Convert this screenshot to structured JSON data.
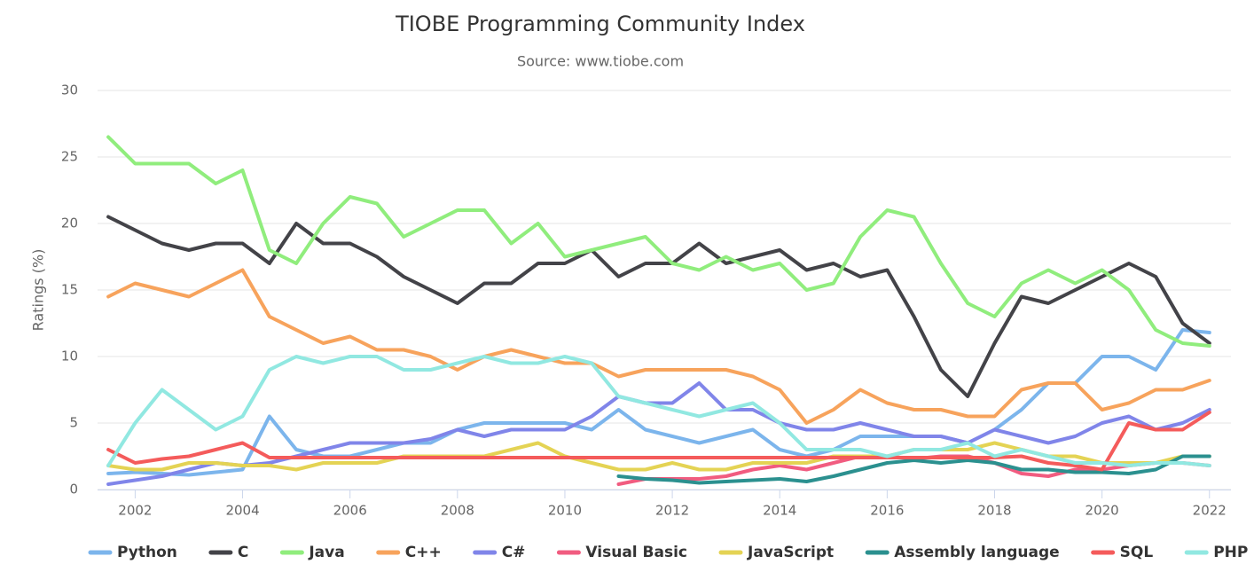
{
  "chart_data": {
    "type": "line",
    "title": "TIOBE Programming Community Index",
    "subtitle": "Source: www.tiobe.com",
    "y_label": "Ratings (%)",
    "x": [
      2001.5,
      2002,
      2002.5,
      2003,
      2003.5,
      2004,
      2004.5,
      2005,
      2005.5,
      2006,
      2006.5,
      2007,
      2007.5,
      2008,
      2008.5,
      2009,
      2009.5,
      2010,
      2010.5,
      2011,
      2011.5,
      2012,
      2012.5,
      2013,
      2013.5,
      2014,
      2014.5,
      2015,
      2015.5,
      2016,
      2016.5,
      2017,
      2017.5,
      2018,
      2018.5,
      2019,
      2019.5,
      2020,
      2020.5,
      2021,
      2021.5,
      2022
    ],
    "xlim": [
      2001.3,
      2022.4
    ],
    "xticks": [
      2002,
      2004,
      2006,
      2008,
      2010,
      2012,
      2014,
      2016,
      2018,
      2020,
      2022
    ],
    "ylim": [
      0,
      30
    ],
    "yticks": [
      0,
      5,
      10,
      15,
      20,
      25,
      30
    ],
    "grid": true,
    "legend": "bottom",
    "series": [
      {
        "name": "Python",
        "color": "#7cb5ec",
        "values": [
          1.2,
          1.3,
          1.2,
          1.1,
          1.3,
          1.5,
          5.5,
          3,
          2.5,
          2.5,
          3,
          3.5,
          3.5,
          4.5,
          5,
          5,
          5,
          5,
          4.5,
          6,
          4.5,
          4,
          3.5,
          4,
          4.5,
          3,
          2.5,
          3,
          4,
          4,
          4,
          4,
          3.5,
          4.5,
          6,
          8,
          8,
          10,
          10,
          9,
          12,
          11.8
        ]
      },
      {
        "name": "C",
        "color": "#434348",
        "values": [
          20.5,
          19.5,
          18.5,
          18,
          18.5,
          18.5,
          17,
          20,
          18.5,
          18.5,
          17.5,
          16,
          15,
          14,
          15.5,
          15.5,
          17,
          17,
          18,
          16,
          17,
          17,
          18.5,
          17,
          17.5,
          18,
          16.5,
          17,
          16,
          16.5,
          13,
          9,
          7,
          11,
          14.5,
          14,
          15,
          16,
          17,
          16,
          12.5,
          11
        ]
      },
      {
        "name": "Java",
        "color": "#90ed7d",
        "values": [
          26.5,
          24.5,
          24.5,
          24.5,
          23,
          24,
          18,
          17,
          20,
          22,
          21.5,
          19,
          20,
          21,
          21,
          18.5,
          20,
          17.5,
          18,
          18.5,
          19,
          17,
          16.5,
          17.5,
          16.5,
          17,
          15,
          15.5,
          19,
          21,
          20.5,
          17,
          14,
          13,
          15.5,
          16.5,
          15.5,
          16.5,
          15,
          12,
          11,
          10.8
        ]
      },
      {
        "name": "C++",
        "color": "#f7a35c",
        "values": [
          14.5,
          15.5,
          15,
          14.5,
          15.5,
          16.5,
          13,
          12,
          11,
          11.5,
          10.5,
          10.5,
          10,
          9,
          10,
          10.5,
          10,
          9.5,
          9.5,
          8.5,
          9,
          9,
          9,
          9,
          8.5,
          7.5,
          5,
          6,
          7.5,
          6.5,
          6,
          6,
          5.5,
          5.5,
          7.5,
          8,
          8,
          6,
          6.5,
          7.5,
          7.5,
          8.2
        ]
      },
      {
        "name": "C#",
        "color": "#8085e9",
        "values": [
          0.4,
          0.7,
          1,
          1.5,
          2,
          1.8,
          2,
          2.5,
          3,
          3.5,
          3.5,
          3.5,
          3.8,
          4.5,
          4,
          4.5,
          4.5,
          4.5,
          5.5,
          7,
          6.5,
          6.5,
          8,
          6,
          6,
          5,
          4.5,
          4.5,
          5,
          4.5,
          4,
          4,
          3.5,
          4.5,
          4,
          3.5,
          4,
          5,
          5.5,
          4.5,
          5,
          6
        ]
      },
      {
        "name": "Visual Basic",
        "color": "#f15c80",
        "values": [
          null,
          null,
          null,
          null,
          null,
          null,
          null,
          null,
          null,
          null,
          null,
          null,
          null,
          null,
          null,
          null,
          null,
          null,
          null,
          0.4,
          0.8,
          0.8,
          0.8,
          1,
          1.5,
          1.8,
          1.5,
          2,
          2.5,
          2.5,
          2.3,
          2.5,
          2.5,
          2,
          1.2,
          1,
          1.5,
          1.5,
          1.8,
          2,
          2,
          1.8
        ]
      },
      {
        "name": "JavaScript",
        "color": "#e4d354",
        "values": [
          1.8,
          1.5,
          1.5,
          2,
          2,
          1.8,
          1.8,
          1.5,
          2,
          2,
          2,
          2.5,
          2.5,
          2.5,
          2.5,
          3,
          3.5,
          2.5,
          2,
          1.5,
          1.5,
          2,
          1.5,
          1.5,
          2,
          2,
          2,
          2.5,
          2.5,
          2.5,
          3,
          3,
          3,
          3.5,
          3,
          2.5,
          2.5,
          2,
          2,
          2,
          2.5,
          2.5
        ]
      },
      {
        "name": "Assembly language",
        "color": "#2b908f",
        "values": [
          null,
          null,
          null,
          null,
          null,
          null,
          null,
          null,
          null,
          null,
          null,
          null,
          null,
          null,
          null,
          null,
          null,
          null,
          null,
          1,
          0.8,
          0.7,
          0.5,
          0.6,
          0.7,
          0.8,
          0.6,
          1,
          1.5,
          2,
          2.2,
          2,
          2.2,
          2,
          1.5,
          1.5,
          1.3,
          1.3,
          1.2,
          1.5,
          2.5,
          2.5
        ]
      },
      {
        "name": "SQL",
        "color": "#f45b5b",
        "values": [
          3,
          2,
          2.3,
          2.5,
          3,
          3.5,
          2.4,
          2.4,
          2.4,
          2.4,
          2.4,
          2.4,
          2.4,
          2.4,
          2.4,
          2.4,
          2.4,
          2.4,
          2.4,
          2.4,
          2.4,
          2.4,
          2.4,
          2.4,
          2.4,
          2.4,
          2.4,
          2.4,
          2.4,
          2.4,
          2.4,
          2.4,
          2.4,
          2.4,
          2.5,
          2,
          1.8,
          1.5,
          5,
          4.5,
          4.5,
          5.8
        ]
      },
      {
        "name": "PHP",
        "color": "#91e8e1",
        "values": [
          1.8,
          5,
          7.5,
          6,
          4.5,
          5.5,
          9,
          10,
          9.5,
          10,
          10,
          9,
          9,
          9.5,
          10,
          9.5,
          9.5,
          10,
          9.5,
          7,
          6.5,
          6,
          5.5,
          6,
          6.5,
          5,
          3,
          3,
          3,
          2.5,
          3,
          3,
          3.5,
          2.5,
          3,
          2.5,
          2,
          2,
          1.8,
          2,
          2,
          1.8
        ]
      }
    ]
  }
}
